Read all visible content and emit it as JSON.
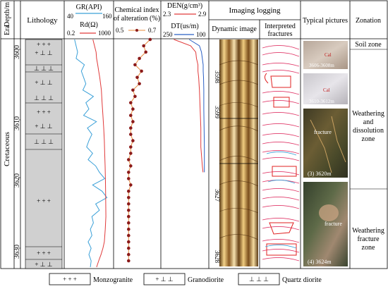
{
  "headers": {
    "era_depth": [
      "Era",
      "Depth/m"
    ],
    "lithology": "Lithology",
    "gr": "GR(API)",
    "gr_range": [
      "40",
      "160"
    ],
    "rd": "Rd(Ω)",
    "rd_range": [
      "0.2",
      "1000"
    ],
    "cia": [
      "Chemical index",
      "of alteration (%)"
    ],
    "cia_range": [
      "0.5",
      "0.7"
    ],
    "den": "DEN(g/cm³)",
    "den_range": [
      "2.3",
      "2.9"
    ],
    "dt": "DT(us/m)",
    "dt_range": [
      "250",
      "100"
    ],
    "imaging": "Imaging logging",
    "dynamic": "Dynamic image",
    "interpreted": [
      "Interpreted",
      "fractures"
    ],
    "pictures": "Typical pictures",
    "zonation": "Zonation"
  },
  "era": "Cretaceous",
  "depth_ticks": [
    "3600",
    "3610",
    "3620",
    "3630"
  ],
  "image_depth_ticks": [
    "3598",
    "3599",
    "3627",
    "3628"
  ],
  "pictures": [
    {
      "caption": "3606-3608m",
      "label": "Cal"
    },
    {
      "caption": "3610-3612m",
      "label": "Cal"
    },
    {
      "caption": "(3) 3620m",
      "label": "fracture"
    },
    {
      "caption": "(4) 3624m",
      "label": "fracture"
    }
  ],
  "zones": [
    {
      "lines": [
        "Soil zone"
      ]
    },
    {
      "lines": [
        "Weathering",
        "and",
        "dissolution",
        "zone"
      ]
    },
    {
      "lines": [
        "Weathering",
        "fracture",
        "zone"
      ]
    }
  ],
  "legend": [
    {
      "label": "Monzogranite",
      "symbol": "+ + +"
    },
    {
      "label": "Granodiorite",
      "symbol": "+ ⊥ ⊥"
    },
    {
      "label": "Quartz diorite",
      "symbol": "⊥ ⊥ ⊥"
    }
  ],
  "colors": {
    "gr": "#3aa0d8",
    "rd": "#e03a3a",
    "cia_line": "#e88a3a",
    "cia_point": "#8b1a1a",
    "den": "#e03a3a",
    "dt": "#2a5fc4",
    "lith_fill": "#d0d0d0"
  },
  "chart_data": {
    "type": "line",
    "depth_range": [
      3597,
      3633
    ],
    "series": [
      {
        "name": "GR(API)",
        "range": [
          40,
          160
        ],
        "depth": [
          3597,
          3599,
          3600,
          3601,
          3602,
          3603,
          3604,
          3605,
          3606,
          3607,
          3608,
          3609,
          3610,
          3611,
          3612,
          3613,
          3614,
          3615,
          3616,
          3617,
          3618,
          3619,
          3620,
          3621,
          3622,
          3623,
          3624,
          3625,
          3626,
          3627,
          3628,
          3629,
          3630,
          3631,
          3632,
          3633
        ],
        "values": [
          62,
          70,
          66,
          88,
          80,
          86,
          92,
          84,
          112,
          92,
          100,
          86,
          120,
          96,
          108,
          100,
          94,
          110,
          98,
          118,
          128,
          142,
          110,
          135,
          148,
          118,
          128,
          108,
          112,
          104,
          108,
          98,
          106,
          100,
          106,
          104
        ]
      },
      {
        "name": "Rd(Ω)",
        "range": [
          0.2,
          1000
        ],
        "depth": [
          3597,
          3599,
          3600,
          3601,
          3602,
          3603,
          3605,
          3607,
          3609,
          3611,
          3613,
          3615,
          3617,
          3619,
          3621,
          3623,
          3625,
          3627,
          3629,
          3630,
          3631,
          3632,
          3633
        ],
        "values": [
          30,
          55,
          60,
          75,
          90,
          110,
          150,
          170,
          200,
          230,
          260,
          280,
          300,
          320,
          330,
          340,
          350,
          310,
          260,
          200,
          140,
          90,
          60
        ]
      },
      {
        "name": "Chemical index of alteration (%)",
        "range": [
          0.5,
          0.7
        ],
        "depth": [
          3597,
          3598,
          3599,
          3600,
          3601,
          3602,
          3603,
          3604,
          3605,
          3606,
          3607,
          3608,
          3609,
          3610,
          3611,
          3612,
          3613,
          3614,
          3615,
          3616,
          3617,
          3618,
          3619,
          3620,
          3621,
          3622,
          3623,
          3624,
          3625,
          3626,
          3627,
          3628,
          3629,
          3630,
          3631,
          3632
        ],
        "values": [
          0.66,
          0.63,
          0.64,
          0.61,
          0.59,
          0.62,
          0.6,
          0.61,
          0.58,
          0.59,
          0.57,
          0.58,
          0.57,
          0.58,
          0.57,
          0.57,
          0.58,
          0.57,
          0.57,
          0.56,
          0.57,
          0.56,
          0.56,
          0.57,
          0.56,
          0.56,
          0.56,
          0.56,
          0.56,
          0.56,
          0.56,
          0.56,
          0.56,
          0.56,
          0.56,
          0.56
        ]
      },
      {
        "name": "DEN(g/cm³)",
        "range": [
          2.3,
          2.9
        ],
        "depth": [
          3597,
          3598,
          3599,
          3600,
          3601,
          3602,
          3603,
          3605,
          3608,
          3611,
          3614,
          3617,
          3618
        ],
        "values": [
          2.45,
          2.68,
          2.75,
          2.76,
          2.78,
          2.78,
          2.79,
          2.8,
          2.81,
          2.82,
          2.82,
          2.84,
          2.85
        ]
      },
      {
        "name": "DT(us/m)",
        "range": [
          250,
          100
        ],
        "depth": [
          3597,
          3598,
          3599,
          3600,
          3601,
          3602,
          3603,
          3605,
          3608,
          3611,
          3614,
          3617,
          3618
        ],
        "values": [
          160,
          125,
          118,
          115,
          112,
          112,
          111,
          110,
          110,
          109,
          108,
          108,
          108
        ]
      }
    ]
  }
}
